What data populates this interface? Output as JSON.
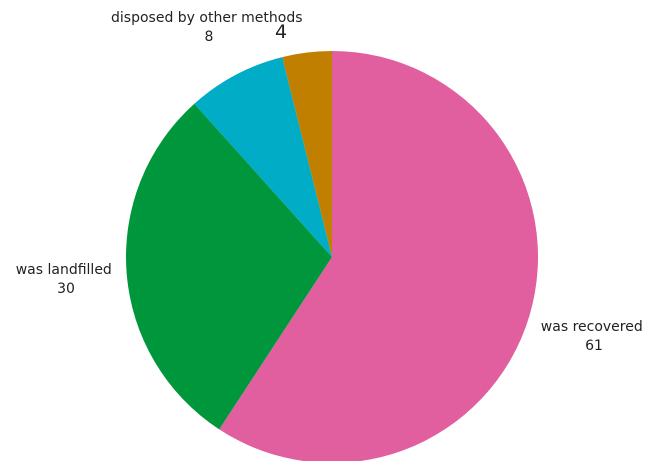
{
  "chart_data": {
    "type": "pie",
    "title": "",
    "categories": [
      "was recovered",
      "was landfilled",
      "disposed by other methods",
      ""
    ],
    "values": [
      61,
      30,
      8,
      4
    ],
    "colors": [
      "#e15f9e",
      "#00963c",
      "#00acc6",
      "#c17f00"
    ],
    "value_labels": [
      "61",
      "30",
      "8",
      "4"
    ],
    "start": "top",
    "direction": "clockwise",
    "legend": "none"
  }
}
